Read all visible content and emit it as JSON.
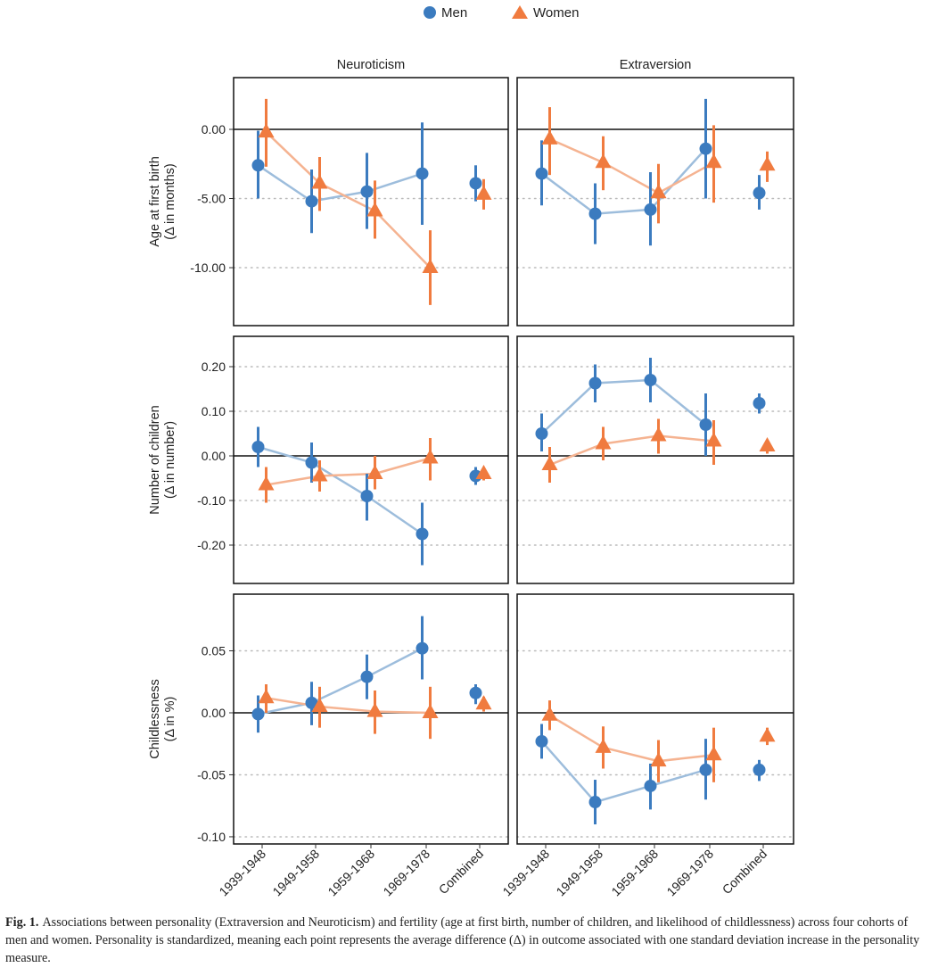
{
  "chart_data": {
    "type": "scatter",
    "legend": {
      "placement": "top",
      "entries": [
        {
          "name": "Men",
          "marker": "circle",
          "color": "#3b7bbf",
          "line_color": "#9dbddc"
        },
        {
          "name": "Women",
          "marker": "triangle",
          "color": "#f07b3f",
          "line_color": "#f5b391"
        }
      ]
    },
    "columns": [
      "Neuroticism",
      "Extraversion"
    ],
    "categories": [
      "1939-1948",
      "1949-1958",
      "1959-1968",
      "1969-1978",
      "Combined"
    ],
    "rows": [
      {
        "ylabel": [
          "Age at first birth",
          "(Δ in months)"
        ],
        "ylim": [
          -14.19,
          3.74
        ],
        "yticks": [
          0,
          -5,
          -10
        ],
        "ytick_labels": [
          "0.00",
          "-5.00",
          "-10.00"
        ],
        "dotted_grid": [
          -5,
          -10
        ],
        "zero_line": 0,
        "panels": [
          {
            "column": "Neuroticism",
            "series": [
              {
                "name": "Men",
                "values": [
                  -2.6,
                  -5.2,
                  -4.5,
                  -3.2,
                  -3.9
                ],
                "ci_high": [
                  -0.1,
                  -2.9,
                  -1.7,
                  0.5,
                  -2.6
                ],
                "ci_low": [
                  -5.0,
                  -7.5,
                  -7.2,
                  -6.9,
                  -5.2
                ]
              },
              {
                "name": "Women",
                "values": [
                  -0.2,
                  -3.9,
                  -5.9,
                  -10.0,
                  -4.7
                ],
                "ci_high": [
                  2.2,
                  -2.0,
                  -3.7,
                  -7.3,
                  -3.6
                ],
                "ci_low": [
                  -2.7,
                  -5.9,
                  -7.9,
                  -12.7,
                  -5.8
                ]
              }
            ]
          },
          {
            "column": "Extraversion",
            "series": [
              {
                "name": "Men",
                "values": [
                  -3.2,
                  -6.1,
                  -5.8,
                  -1.4,
                  -4.6
                ],
                "ci_high": [
                  -0.8,
                  -3.9,
                  -3.1,
                  2.2,
                  -3.3
                ],
                "ci_low": [
                  -5.5,
                  -8.3,
                  -8.4,
                  -5.0,
                  -5.8
                ]
              },
              {
                "name": "Women",
                "values": [
                  -0.7,
                  -2.4,
                  -4.6,
                  -2.4,
                  -2.6
                ],
                "ci_high": [
                  1.6,
                  -0.5,
                  -2.5,
                  0.3,
                  -1.6
                ],
                "ci_low": [
                  -3.3,
                  -4.4,
                  -6.8,
                  -5.3,
                  -3.8
                ]
              }
            ]
          }
        ]
      },
      {
        "ylabel": [
          "Number of children",
          "(Δ in number)"
        ],
        "ylim": [
          -0.286,
          0.268
        ],
        "yticks": [
          0.2,
          0.1,
          0,
          -0.1,
          -0.2
        ],
        "ytick_labels": [
          "0.20",
          "0.10",
          "0.00",
          "-0.10",
          "-0.20"
        ],
        "dotted_grid": [
          0.2,
          0.1,
          -0.1,
          -0.2
        ],
        "zero_line": 0,
        "panels": [
          {
            "column": "Neuroticism",
            "series": [
              {
                "name": "Men",
                "values": [
                  0.02,
                  -0.015,
                  -0.09,
                  -0.175,
                  -0.045
                ],
                "ci_high": [
                  0.065,
                  0.03,
                  -0.04,
                  -0.105,
                  -0.025
                ],
                "ci_low": [
                  -0.025,
                  -0.06,
                  -0.145,
                  -0.245,
                  -0.065
                ]
              },
              {
                "name": "Women",
                "values": [
                  -0.065,
                  -0.045,
                  -0.04,
                  -0.005,
                  -0.04
                ],
                "ci_high": [
                  -0.025,
                  -0.01,
                  0.0,
                  0.04,
                  -0.025
                ],
                "ci_low": [
                  -0.105,
                  -0.08,
                  -0.075,
                  -0.055,
                  -0.055
                ]
              }
            ]
          },
          {
            "column": "Extraversion",
            "series": [
              {
                "name": "Men",
                "values": [
                  0.05,
                  0.163,
                  0.17,
                  0.07,
                  0.118
                ],
                "ci_high": [
                  0.095,
                  0.205,
                  0.22,
                  0.14,
                  0.14
                ],
                "ci_low": [
                  0.01,
                  0.12,
                  0.12,
                  0.0,
                  0.095
                ]
              },
              {
                "name": "Women",
                "values": [
                  -0.02,
                  0.027,
                  0.045,
                  0.033,
                  0.022
                ],
                "ci_high": [
                  0.02,
                  0.065,
                  0.083,
                  0.08,
                  0.035
                ],
                "ci_low": [
                  -0.06,
                  -0.01,
                  0.005,
                  -0.02,
                  0.005
                ]
              }
            ]
          }
        ]
      },
      {
        "ylabel": [
          "Childlessness",
          "(Δ in %)"
        ],
        "ylim": [
          -0.1058,
          0.0957
        ],
        "yticks": [
          0.05,
          0,
          -0.05,
          -0.1
        ],
        "ytick_labels": [
          "0.05",
          "0.00",
          "-0.05",
          "-0.10"
        ],
        "dotted_grid": [
          0.05,
          -0.05,
          -0.1
        ],
        "zero_line": 0,
        "panels": [
          {
            "column": "Neuroticism",
            "series": [
              {
                "name": "Men",
                "values": [
                  -0.001,
                  0.008,
                  0.029,
                  0.052,
                  0.016
                ],
                "ci_high": [
                  0.014,
                  0.025,
                  0.047,
                  0.078,
                  0.023
                ],
                "ci_low": [
                  -0.016,
                  -0.01,
                  0.011,
                  0.027,
                  0.007
                ]
              },
              {
                "name": "Women",
                "values": [
                  0.012,
                  0.005,
                  0.001,
                  0.0,
                  0.007
                ],
                "ci_high": [
                  0.023,
                  0.021,
                  0.018,
                  0.021,
                  0.013
                ],
                "ci_low": [
                  0.0,
                  -0.012,
                  -0.017,
                  -0.021,
                  0.001
                ]
              }
            ]
          },
          {
            "column": "Extraversion",
            "series": [
              {
                "name": "Men",
                "values": [
                  -0.023,
                  -0.072,
                  -0.059,
                  -0.046,
                  -0.046
                ],
                "ci_high": [
                  -0.009,
                  -0.054,
                  -0.041,
                  -0.021,
                  -0.038
                ],
                "ci_low": [
                  -0.037,
                  -0.09,
                  -0.078,
                  -0.07,
                  -0.055
                ]
              },
              {
                "name": "Women",
                "values": [
                  -0.002,
                  -0.028,
                  -0.039,
                  -0.034,
                  -0.019
                ],
                "ci_high": [
                  0.01,
                  -0.011,
                  -0.022,
                  -0.012,
                  -0.012
                ],
                "ci_low": [
                  -0.014,
                  -0.045,
                  -0.056,
                  -0.056,
                  -0.026
                ]
              }
            ]
          }
        ]
      }
    ]
  },
  "figure": {
    "caption_label": "Fig. 1.",
    "caption_text": "Associations between personality (Extraversion and Neuroticism) and fertility (age at first birth, number of children, and likelihood of childlessness) across four cohorts of men and women. Personality is standardized, meaning each point represents the average difference (Δ) in outcome associated with one standard deviation increase in the personality measure."
  }
}
